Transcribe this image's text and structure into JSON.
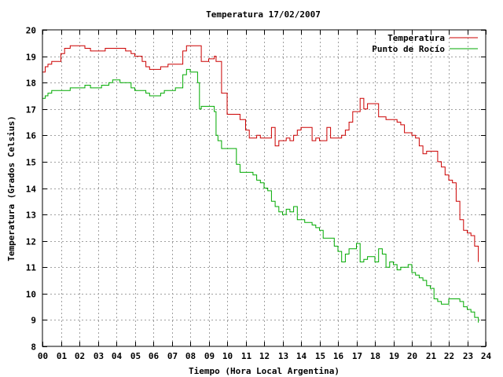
{
  "chart_data": {
    "type": "line",
    "title": "Temperatura 17/02/2007",
    "xlabel": "Tiempo (Hora Local Argentina)",
    "ylabel": "Temperatura (Grados Celsius)",
    "xlim": [
      0,
      24
    ],
    "ylim": [
      8,
      20
    ],
    "x_ticks": [
      "00",
      "01",
      "02",
      "03",
      "04",
      "05",
      "06",
      "07",
      "08",
      "09",
      "10",
      "11",
      "12",
      "13",
      "14",
      "15",
      "16",
      "17",
      "18",
      "19",
      "20",
      "21",
      "22",
      "23",
      "24"
    ],
    "y_ticks": [
      8,
      9,
      10,
      11,
      12,
      13,
      14,
      15,
      16,
      17,
      18,
      19,
      20
    ],
    "grid": true,
    "legend_position": "top-right",
    "series": [
      {
        "name": "Temperatura",
        "color": "#cc0000",
        "x": [
          0.0,
          0.15,
          0.3,
          0.5,
          0.8,
          1.0,
          1.2,
          1.5,
          1.8,
          2.0,
          2.3,
          2.6,
          2.8,
          3.0,
          3.2,
          3.4,
          3.6,
          3.8,
          4.0,
          4.2,
          4.5,
          4.8,
          5.0,
          5.2,
          5.4,
          5.6,
          5.8,
          6.0,
          6.2,
          6.4,
          6.6,
          6.8,
          7.0,
          7.2,
          7.4,
          7.6,
          7.8,
          8.0,
          8.2,
          8.4,
          8.5,
          8.6,
          8.8,
          9.0,
          9.2,
          9.3,
          9.4,
          9.5,
          9.7,
          10.0,
          10.2,
          10.5,
          10.7,
          11.0,
          11.2,
          11.4,
          11.6,
          11.8,
          12.0,
          12.2,
          12.4,
          12.6,
          12.8,
          13.0,
          13.2,
          13.4,
          13.6,
          13.8,
          14.0,
          14.2,
          14.4,
          14.6,
          14.8,
          15.0,
          15.2,
          15.4,
          15.6,
          15.8,
          16.0,
          16.2,
          16.4,
          16.6,
          16.8,
          17.0,
          17.2,
          17.4,
          17.6,
          17.8,
          18.0,
          18.2,
          18.4,
          18.6,
          18.8,
          19.0,
          19.2,
          19.4,
          19.6,
          19.8,
          20.0,
          20.2,
          20.4,
          20.6,
          20.8,
          21.0,
          21.2,
          21.4,
          21.6,
          21.8,
          22.0,
          22.2,
          22.4,
          22.6,
          22.8,
          23.0,
          23.2,
          23.4,
          23.6
        ],
        "values": [
          18.4,
          18.6,
          18.7,
          18.8,
          18.8,
          19.1,
          19.3,
          19.4,
          19.4,
          19.4,
          19.3,
          19.2,
          19.2,
          19.2,
          19.2,
          19.3,
          19.3,
          19.3,
          19.3,
          19.3,
          19.2,
          19.1,
          19.0,
          19.0,
          18.8,
          18.6,
          18.5,
          18.5,
          18.5,
          18.6,
          18.6,
          18.7,
          18.7,
          18.7,
          18.7,
          19.2,
          19.4,
          19.4,
          19.4,
          19.4,
          19.4,
          18.8,
          18.8,
          18.9,
          18.9,
          19.0,
          18.8,
          18.8,
          17.6,
          16.8,
          16.8,
          16.8,
          16.6,
          16.2,
          15.9,
          15.9,
          16.0,
          15.9,
          15.9,
          15.9,
          16.3,
          15.6,
          15.8,
          15.8,
          15.9,
          15.8,
          16.0,
          16.2,
          16.3,
          16.3,
          16.3,
          15.8,
          15.9,
          15.8,
          15.8,
          16.3,
          15.9,
          15.9,
          15.9,
          16.0,
          16.2,
          16.5,
          16.9,
          16.9,
          17.4,
          17.0,
          17.2,
          17.2,
          17.2,
          16.7,
          16.7,
          16.6,
          16.6,
          16.6,
          16.5,
          16.4,
          16.1,
          16.1,
          16.0,
          15.9,
          15.6,
          15.3,
          15.4,
          15.4,
          15.4,
          15.0,
          14.8,
          14.5,
          14.3,
          14.2,
          13.5,
          12.8,
          12.4,
          12.3,
          12.2,
          11.8,
          11.2
        ],
        "stroke_width": 1
      },
      {
        "name": "Punto de Rocío",
        "color": "#00aa00",
        "x": [
          0.0,
          0.15,
          0.3,
          0.5,
          0.8,
          1.0,
          1.2,
          1.5,
          1.8,
          2.0,
          2.3,
          2.6,
          2.8,
          3.0,
          3.2,
          3.4,
          3.6,
          3.8,
          4.0,
          4.2,
          4.5,
          4.8,
          5.0,
          5.2,
          5.4,
          5.6,
          5.8,
          6.0,
          6.2,
          6.4,
          6.6,
          6.8,
          7.0,
          7.2,
          7.4,
          7.6,
          7.8,
          8.0,
          8.2,
          8.4,
          8.5,
          8.6,
          8.8,
          9.0,
          9.2,
          9.3,
          9.4,
          9.5,
          9.7,
          10.0,
          10.2,
          10.5,
          10.7,
          11.0,
          11.2,
          11.4,
          11.6,
          11.8,
          12.0,
          12.2,
          12.4,
          12.6,
          12.8,
          13.0,
          13.2,
          13.4,
          13.6,
          13.8,
          14.0,
          14.2,
          14.4,
          14.6,
          14.8,
          15.0,
          15.2,
          15.4,
          15.6,
          15.8,
          16.0,
          16.2,
          16.4,
          16.6,
          16.8,
          17.0,
          17.2,
          17.4,
          17.6,
          17.8,
          18.0,
          18.2,
          18.4,
          18.6,
          18.8,
          19.0,
          19.2,
          19.4,
          19.6,
          19.8,
          20.0,
          20.2,
          20.4,
          20.6,
          20.8,
          21.0,
          21.2,
          21.4,
          21.6,
          21.8,
          22.0,
          22.2,
          22.4,
          22.6,
          22.8,
          23.0,
          23.2,
          23.4,
          23.6
        ],
        "values": [
          17.4,
          17.5,
          17.6,
          17.7,
          17.7,
          17.7,
          17.7,
          17.8,
          17.8,
          17.8,
          17.9,
          17.8,
          17.8,
          17.8,
          17.9,
          17.9,
          18.0,
          18.1,
          18.1,
          18.0,
          18.0,
          17.8,
          17.7,
          17.7,
          17.7,
          17.6,
          17.5,
          17.5,
          17.5,
          17.6,
          17.7,
          17.7,
          17.7,
          17.8,
          17.8,
          18.3,
          18.5,
          18.4,
          18.4,
          18.0,
          17.0,
          17.1,
          17.1,
          17.1,
          17.1,
          16.9,
          16.0,
          15.8,
          15.5,
          15.5,
          15.5,
          14.9,
          14.6,
          14.6,
          14.6,
          14.5,
          14.3,
          14.2,
          14.0,
          13.9,
          13.5,
          13.3,
          13.1,
          13.0,
          13.2,
          13.1,
          13.3,
          12.8,
          12.8,
          12.7,
          12.7,
          12.6,
          12.5,
          12.4,
          12.1,
          12.1,
          12.1,
          11.8,
          11.6,
          11.2,
          11.5,
          11.7,
          11.7,
          11.9,
          11.2,
          11.3,
          11.4,
          11.4,
          11.2,
          11.7,
          11.5,
          11.0,
          11.2,
          11.1,
          10.9,
          11.0,
          11.0,
          11.1,
          10.8,
          10.7,
          10.6,
          10.5,
          10.3,
          10.2,
          9.8,
          9.7,
          9.6,
          9.6,
          9.8,
          9.8,
          9.8,
          9.7,
          9.5,
          9.4,
          9.3,
          9.1,
          8.9
        ],
        "stroke_width": 1
      }
    ]
  }
}
